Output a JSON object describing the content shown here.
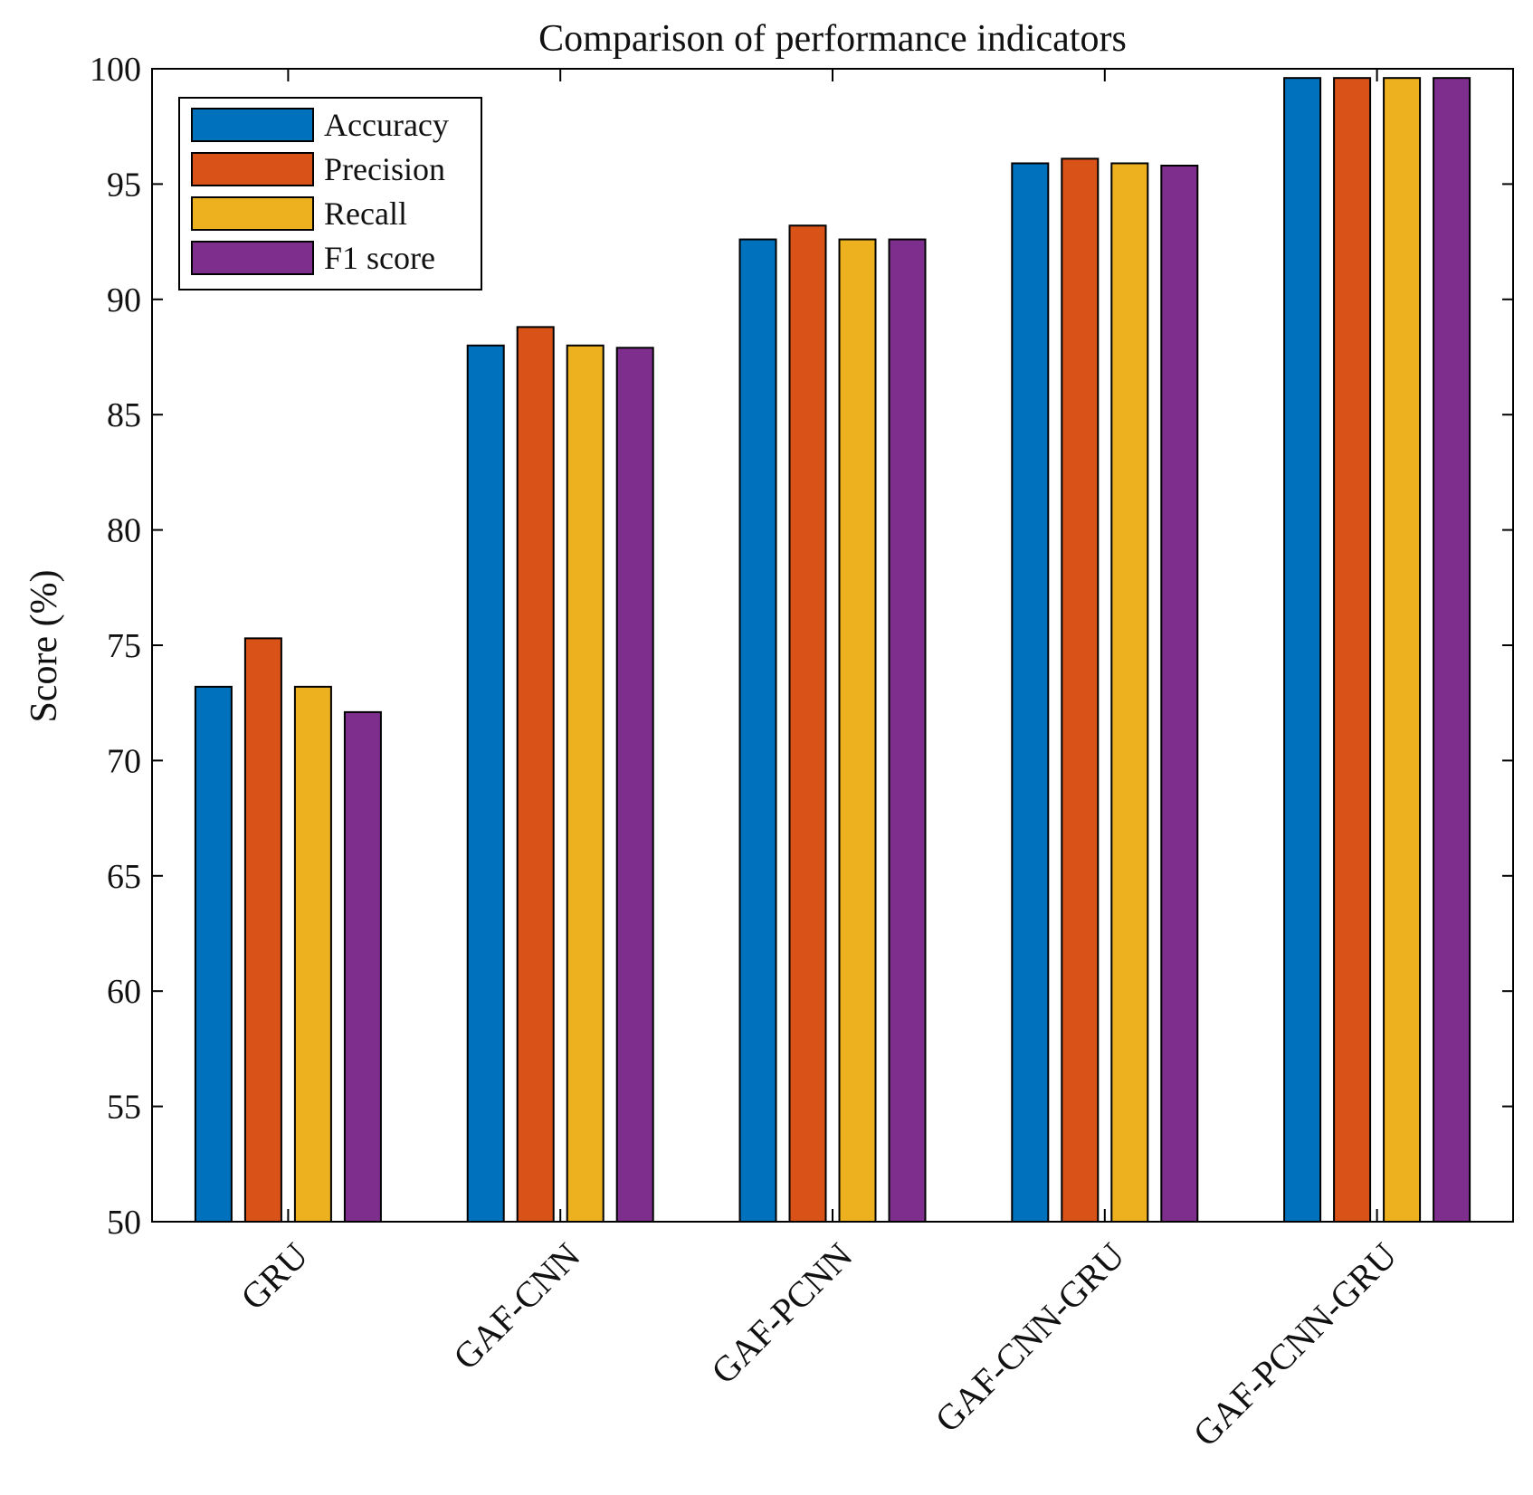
{
  "chart_data": {
    "type": "bar",
    "title": "Comparison of performance indicators",
    "xlabel": "",
    "ylabel": "Score (%)",
    "ylim": [
      50,
      100
    ],
    "yticks": [
      50,
      55,
      60,
      65,
      70,
      75,
      80,
      85,
      90,
      95,
      100
    ],
    "categories": [
      "GRU",
      "GAF-CNN",
      "GAF-PCNN",
      "GAF-CNN-GRU",
      "GAF-PCNN-GRU"
    ],
    "series": [
      {
        "name": "Accuracy",
        "color": "#0072BD",
        "values": [
          73.2,
          88.0,
          92.6,
          95.9,
          99.6
        ]
      },
      {
        "name": "Precision",
        "color": "#D95319",
        "values": [
          75.3,
          88.8,
          93.2,
          96.1,
          99.6
        ]
      },
      {
        "name": "Recall",
        "color": "#EDB120",
        "values": [
          73.2,
          88.0,
          92.6,
          95.9,
          99.6
        ]
      },
      {
        "name": "F1 score",
        "color": "#7E2F8E",
        "values": [
          72.1,
          87.9,
          92.6,
          95.8,
          99.6
        ]
      }
    ],
    "legend_position": "top-left",
    "grid": false
  }
}
